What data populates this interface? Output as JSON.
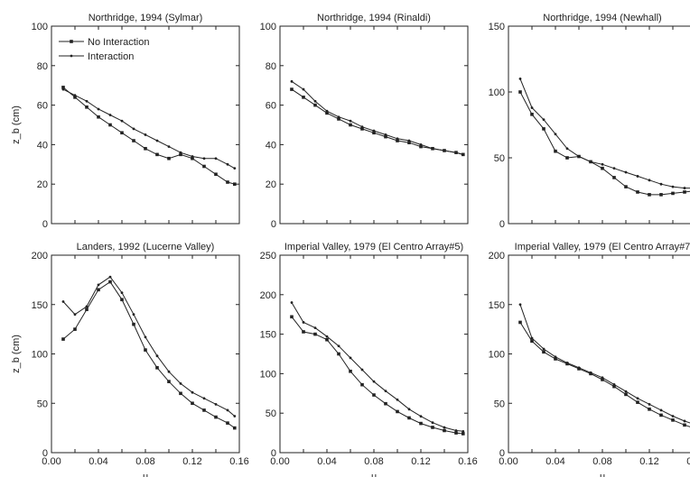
{
  "figure": {
    "background": "#ffffff",
    "line_color": "#222222"
  },
  "chart_data": [
    {
      "type": "line",
      "title": "Northridge, 1994 (Sylmar)",
      "xlabel": "",
      "ylabel": "z_b (cm)",
      "xlim": [
        0,
        0.16
      ],
      "ylim": [
        0,
        100
      ],
      "yticks": [
        "0",
        "20",
        "40",
        "60",
        "80",
        "100"
      ],
      "xticks": [],
      "legend": {
        "placement": "top-left",
        "entries": [
          "No Interaction",
          "Interaction"
        ]
      },
      "series": [
        {
          "name": "No Interaction",
          "marker": "square",
          "x": [
            0.01,
            0.02,
            0.03,
            0.04,
            0.05,
            0.06,
            0.07,
            0.08,
            0.09,
            0.1,
            0.11,
            0.12,
            0.13,
            0.14,
            0.15,
            0.156
          ],
          "y": [
            69,
            64,
            59,
            54,
            50,
            46,
            42,
            38,
            35,
            33,
            35,
            33,
            29,
            25,
            21,
            20
          ]
        },
        {
          "name": "Interaction",
          "marker": "dot",
          "x": [
            0.01,
            0.02,
            0.03,
            0.04,
            0.05,
            0.06,
            0.07,
            0.08,
            0.09,
            0.1,
            0.11,
            0.12,
            0.13,
            0.14,
            0.15,
            0.156
          ],
          "y": [
            68,
            65,
            62,
            58,
            55,
            52,
            48,
            45,
            42,
            39,
            36,
            34,
            33,
            33,
            30,
            28
          ]
        }
      ]
    },
    {
      "type": "line",
      "title": "Northridge, 1994 (Rinaldi)",
      "xlabel": "",
      "ylabel": "",
      "xlim": [
        0,
        0.16
      ],
      "ylim": [
        0,
        100
      ],
      "yticks": [
        "0",
        "20",
        "40",
        "60",
        "80",
        "100"
      ],
      "xticks": [],
      "series": [
        {
          "marker": "square",
          "x": [
            0.01,
            0.02,
            0.03,
            0.04,
            0.05,
            0.06,
            0.07,
            0.08,
            0.09,
            0.1,
            0.11,
            0.12,
            0.13,
            0.14,
            0.15,
            0.156
          ],
          "y": [
            68,
            64,
            60,
            56,
            53,
            50,
            48,
            46,
            44,
            42,
            41,
            39,
            38,
            37,
            36,
            35
          ]
        },
        {
          "marker": "dot",
          "x": [
            0.01,
            0.02,
            0.03,
            0.04,
            0.05,
            0.06,
            0.07,
            0.08,
            0.09,
            0.1,
            0.11,
            0.12,
            0.13,
            0.14,
            0.15,
            0.156
          ],
          "y": [
            72,
            68,
            62,
            57,
            54,
            52,
            49,
            47,
            45,
            43,
            42,
            40,
            38,
            37,
            36,
            35
          ]
        }
      ]
    },
    {
      "type": "line",
      "title": "Northridge, 1994 (Newhall)",
      "xlabel": "",
      "ylabel": "",
      "xlim": [
        0,
        0.16
      ],
      "ylim": [
        0,
        150
      ],
      "yticks": [
        "0",
        "50",
        "100",
        "150"
      ],
      "xticks": [],
      "series": [
        {
          "marker": "square",
          "x": [
            0.01,
            0.02,
            0.03,
            0.04,
            0.05,
            0.06,
            0.07,
            0.08,
            0.09,
            0.1,
            0.11,
            0.12,
            0.13,
            0.14,
            0.15,
            0.16
          ],
          "y": [
            100,
            83,
            72,
            55,
            50,
            51,
            47,
            42,
            35,
            28,
            24,
            22,
            22,
            23,
            24,
            25
          ]
        },
        {
          "marker": "dot",
          "x": [
            0.01,
            0.02,
            0.03,
            0.04,
            0.05,
            0.06,
            0.07,
            0.08,
            0.09,
            0.1,
            0.11,
            0.12,
            0.13,
            0.14,
            0.15,
            0.16
          ],
          "y": [
            110,
            88,
            79,
            68,
            57,
            51,
            47,
            45,
            42,
            39,
            36,
            33,
            30,
            28,
            27,
            27
          ]
        }
      ]
    },
    {
      "type": "line",
      "title": "Landers, 1992 (Lucerne Valley)",
      "xlabel": "u",
      "ylabel": "z_b (cm)",
      "xlim": [
        0,
        0.16
      ],
      "ylim": [
        0,
        200
      ],
      "yticks": [
        "0",
        "50",
        "100",
        "150",
        "200"
      ],
      "xticks": [
        "0.00",
        "0.04",
        "0.08",
        "0.12",
        "0.16"
      ],
      "series": [
        {
          "marker": "square",
          "x": [
            0.01,
            0.02,
            0.03,
            0.04,
            0.05,
            0.06,
            0.07,
            0.08,
            0.09,
            0.1,
            0.11,
            0.12,
            0.13,
            0.14,
            0.15,
            0.156
          ],
          "y": [
            115,
            125,
            145,
            165,
            173,
            155,
            130,
            104,
            86,
            72,
            60,
            50,
            43,
            36,
            30,
            25
          ]
        },
        {
          "marker": "dot",
          "x": [
            0.01,
            0.02,
            0.03,
            0.04,
            0.05,
            0.06,
            0.07,
            0.08,
            0.09,
            0.1,
            0.11,
            0.12,
            0.13,
            0.14,
            0.15,
            0.156
          ],
          "y": [
            153,
            140,
            148,
            170,
            178,
            162,
            140,
            117,
            98,
            82,
            70,
            61,
            55,
            49,
            43,
            37
          ]
        }
      ]
    },
    {
      "type": "line",
      "title": "Imperial Valley, 1979 (El Centro Array#5)",
      "xlabel": "u",
      "ylabel": "",
      "xlim": [
        0,
        0.16
      ],
      "ylim": [
        0,
        250
      ],
      "yticks": [
        "0",
        "50",
        "100",
        "150",
        "200",
        "250"
      ],
      "xticks": [
        "0.00",
        "0.04",
        "0.08",
        "0.12",
        "0.16"
      ],
      "series": [
        {
          "marker": "square",
          "x": [
            0.01,
            0.02,
            0.03,
            0.04,
            0.05,
            0.06,
            0.07,
            0.08,
            0.09,
            0.1,
            0.11,
            0.12,
            0.13,
            0.14,
            0.15,
            0.156
          ],
          "y": [
            172,
            153,
            150,
            143,
            125,
            103,
            86,
            73,
            62,
            52,
            44,
            37,
            32,
            28,
            25,
            24
          ]
        },
        {
          "marker": "dot",
          "x": [
            0.01,
            0.02,
            0.03,
            0.04,
            0.05,
            0.06,
            0.07,
            0.08,
            0.09,
            0.1,
            0.11,
            0.12,
            0.13,
            0.14,
            0.15,
            0.156
          ],
          "y": [
            190,
            165,
            158,
            147,
            135,
            120,
            105,
            90,
            78,
            67,
            55,
            46,
            38,
            32,
            28,
            27
          ]
        }
      ]
    },
    {
      "type": "line",
      "title": "Imperial Valley, 1979 (El Centro Array#7",
      "xlabel": "u",
      "ylabel": "",
      "xlim": [
        0,
        0.16
      ],
      "ylim": [
        0,
        200
      ],
      "yticks": [
        "0",
        "50",
        "100",
        "150",
        "200"
      ],
      "xticks": [
        "0.00",
        "0.04",
        "0.08",
        "0.12",
        "0.16"
      ],
      "series": [
        {
          "marker": "square",
          "x": [
            0.01,
            0.02,
            0.03,
            0.04,
            0.05,
            0.06,
            0.07,
            0.08,
            0.09,
            0.1,
            0.11,
            0.12,
            0.13,
            0.14,
            0.15,
            0.16
          ],
          "y": [
            132,
            113,
            102,
            95,
            90,
            85,
            80,
            74,
            67,
            59,
            51,
            44,
            38,
            33,
            28,
            24
          ]
        },
        {
          "marker": "dot",
          "x": [
            0.01,
            0.02,
            0.03,
            0.04,
            0.05,
            0.06,
            0.07,
            0.08,
            0.09,
            0.1,
            0.11,
            0.12,
            0.13,
            0.14,
            0.15,
            0.16
          ],
          "y": [
            150,
            116,
            105,
            97,
            91,
            86,
            81,
            76,
            69,
            62,
            55,
            49,
            43,
            37,
            32,
            28
          ]
        }
      ]
    }
  ]
}
